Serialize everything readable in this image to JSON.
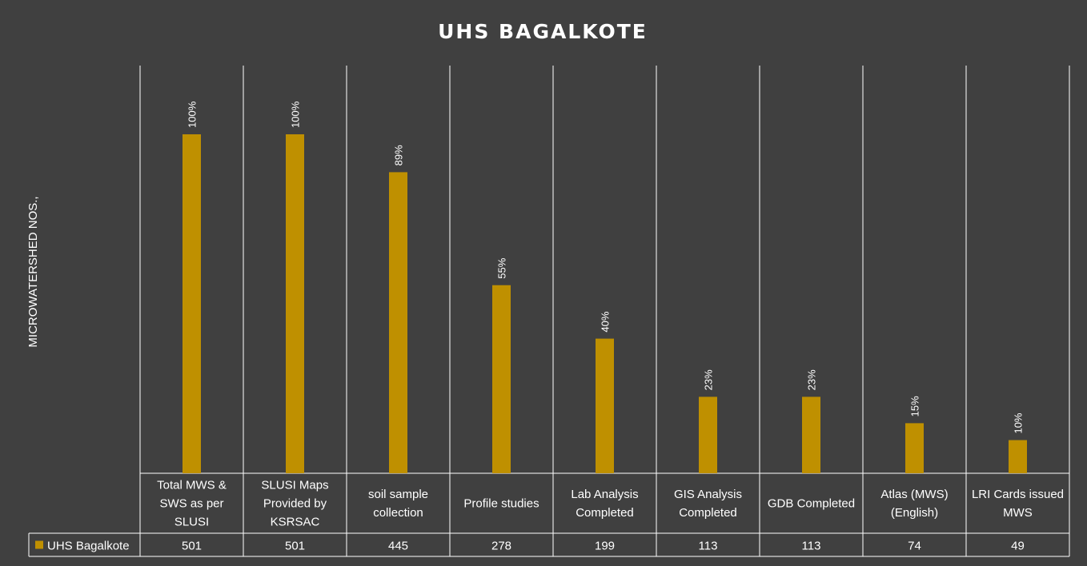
{
  "chart_data": {
    "type": "bar",
    "title": "UHS BAGALKOTE",
    "ylabel": "MICROWATERSHED NOS.,",
    "xlabel": "",
    "categories": [
      [
        "Total MWS &",
        "SWS as per",
        "SLUSI"
      ],
      [
        "SLUSI Maps",
        "Provided by",
        "KSRSAC"
      ],
      [
        "soil sample",
        "collection"
      ],
      [
        "Profile studies"
      ],
      [
        "Lab Analysis",
        "Completed"
      ],
      [
        "GIS Analysis",
        "Completed"
      ],
      [
        "GDB Completed"
      ],
      [
        "Atlas (MWS)",
        "(English)"
      ],
      [
        "LRI Cards issued",
        "MWS"
      ]
    ],
    "series": [
      {
        "name": "UHS Bagalkote",
        "values": [
          501,
          501,
          445,
          278,
          199,
          113,
          113,
          74,
          49
        ],
        "data_labels": [
          "100%",
          "100%",
          "89%",
          "55%",
          "40%",
          "23%",
          "23%",
          "15%",
          "10%"
        ]
      }
    ],
    "ylim": [
      0,
      501
    ],
    "grid": true,
    "legend": "data-table",
    "colors": {
      "background": "#404040",
      "bar": "#BF9000",
      "text": "#FFFFFF",
      "lines": "#FFFFFF"
    }
  }
}
